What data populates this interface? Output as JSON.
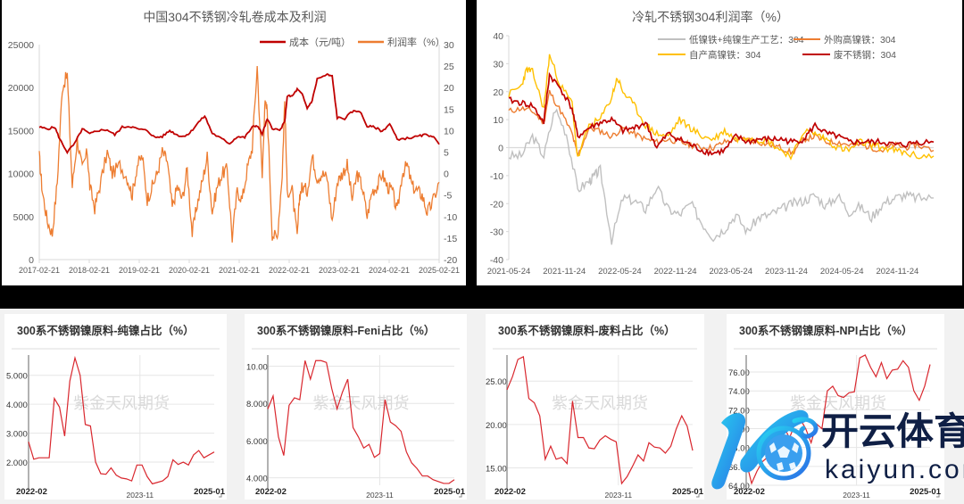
{
  "chart_data": [
    {
      "id": "cost_profit_304",
      "type": "line",
      "title": "中国304不锈钢冷轧卷成本及利润",
      "xlabel": "",
      "ylabel": "",
      "x_ticks": [
        "2017-02-21",
        "2018-02-21",
        "2019-02-21",
        "2020-02-21",
        "2021-02-21",
        "2022-02-21",
        "2023-02-21",
        "2024-02-21",
        "2025-02-21"
      ],
      "y_left": {
        "ticks": [
          0,
          5000,
          10000,
          15000,
          20000,
          25000
        ],
        "ylim": [
          0,
          25000
        ]
      },
      "y_right": {
        "ticks": [
          -20,
          -15,
          -10,
          -5,
          0,
          5,
          10,
          15,
          20,
          25,
          30
        ],
        "ylim": [
          -20,
          30
        ]
      },
      "legend_position": "top-right",
      "grid": false,
      "series": [
        {
          "name": "成本（元/吨）",
          "axis": "left",
          "color": "#c00000",
          "x": [
            2017.14,
            2017.3,
            2017.45,
            2017.55,
            2017.7,
            2017.85,
            2018.0,
            2018.15,
            2018.3,
            2018.5,
            2018.65,
            2018.8,
            2018.95,
            2019.1,
            2019.3,
            2019.45,
            2019.6,
            2019.75,
            2019.9,
            2020.0,
            2020.15,
            2020.3,
            2020.45,
            2020.6,
            2020.8,
            2020.95,
            2021.1,
            2021.25,
            2021.4,
            2021.5,
            2021.6,
            2021.7,
            2021.8,
            2021.95,
            2022.05,
            2022.1,
            2022.2,
            2022.3,
            2022.4,
            2022.5,
            2022.6,
            2022.7,
            2022.9,
            2023.0,
            2023.1,
            2023.25,
            2023.4,
            2023.55,
            2023.7,
            2023.85,
            2024.0,
            2024.15,
            2024.3,
            2024.5,
            2024.7,
            2024.85,
            2025.0,
            2025.14
          ],
          "values": [
            15400,
            15200,
            15400,
            14000,
            12500,
            13500,
            15200,
            14600,
            15000,
            15100,
            14500,
            15400,
            15500,
            15200,
            15000,
            14200,
            14300,
            15000,
            14500,
            14300,
            14700,
            15800,
            16700,
            14700,
            14000,
            13500,
            14300,
            14200,
            15400,
            15600,
            14600,
            16300,
            15300,
            15000,
            16000,
            19000,
            19000,
            19800,
            19200,
            17600,
            18500,
            21000,
            21500,
            21300,
            16500,
            16400,
            17200,
            17300,
            15500,
            15400,
            14900,
            15800,
            14000,
            14100,
            14300,
            14500,
            14400,
            13400
          ]
        },
        {
          "name": "利润率（%）",
          "axis": "right",
          "color": "#ed7d31",
          "x": [
            2017.14,
            2017.2,
            2017.3,
            2017.4,
            2017.5,
            2017.6,
            2017.7,
            2017.8,
            2017.9,
            2018.0,
            2018.1,
            2018.15,
            2018.25,
            2018.35,
            2018.5,
            2018.6,
            2018.75,
            2018.9,
            2019.0,
            2019.1,
            2019.2,
            2019.3,
            2019.4,
            2019.5,
            2019.6,
            2019.7,
            2019.8,
            2019.9,
            2020.0,
            2020.1,
            2020.2,
            2020.3,
            2020.4,
            2020.5,
            2020.6,
            2020.7,
            2020.8,
            2020.9,
            2021.0,
            2021.1,
            2021.2,
            2021.3,
            2021.4,
            2021.5,
            2021.6,
            2021.65,
            2021.7,
            2021.8,
            2021.9,
            2022.0,
            2022.05,
            2022.1,
            2022.2,
            2022.3,
            2022.35,
            2022.4,
            2022.5,
            2022.6,
            2022.7,
            2022.8,
            2022.9,
            2023.0,
            2023.1,
            2023.2,
            2023.3,
            2023.4,
            2023.5,
            2023.6,
            2023.7,
            2023.8,
            2023.9,
            2024.0,
            2024.1,
            2024.2,
            2024.3,
            2024.4,
            2024.5,
            2024.6,
            2024.7,
            2024.8,
            2024.9,
            2025.0,
            2025.14
          ],
          "values": [
            4,
            -4,
            -11,
            -14,
            -2,
            20,
            23,
            -3,
            8,
            1,
            5,
            -3,
            -8,
            -3,
            5,
            0,
            2,
            -1,
            -5,
            2,
            4,
            -6,
            -3,
            0,
            5,
            3,
            -8,
            -3,
            -6,
            1,
            -14,
            -7,
            -2,
            4,
            -9,
            -3,
            0,
            1,
            -15,
            -4,
            -6,
            1,
            6,
            25,
            -1,
            16,
            15,
            -14,
            -15,
            0,
            17,
            -4,
            -4,
            -15,
            -5,
            -3,
            -4,
            4,
            -1,
            0,
            -1,
            -11,
            -2,
            0,
            2,
            -6,
            0,
            -3,
            -10,
            -4,
            -3,
            0,
            -3,
            -4,
            -9,
            0,
            2,
            -3,
            -4,
            -5,
            -9,
            -7,
            -2
          ]
        }
      ]
    },
    {
      "id": "cold_rolled_304_profit_rate",
      "type": "line",
      "title": "冷轧不锈钢304利润率（%）",
      "xlabel": "",
      "ylabel": "",
      "x_ticks": [
        "2021-05-24",
        "2021-11-24",
        "2022-05-24",
        "2022-11-24",
        "2023-05-24",
        "2023-11-24",
        "2024-05-24",
        "2024-11-24"
      ],
      "y_ticks": [
        -40,
        -30,
        -20,
        -10,
        0,
        10,
        20,
        30,
        40
      ],
      "ylim": [
        -40,
        40
      ],
      "legend_position": "top",
      "grid": false,
      "series": [
        {
          "name": "低镍铁+纯镍生产工艺：304",
          "color": "#c0c0c0",
          "x": [
            2021.39,
            2021.5,
            2021.6,
            2021.7,
            2021.8,
            2021.9,
            2022.0,
            2022.1,
            2022.15,
            2022.2,
            2022.3,
            2022.4,
            2022.5,
            2022.6,
            2022.7,
            2022.8,
            2022.9,
            2023.0,
            2023.1,
            2023.2,
            2023.3,
            2023.4,
            2023.5,
            2023.6,
            2023.7,
            2023.8,
            2023.9,
            2024.0,
            2024.1,
            2024.2,
            2024.3,
            2024.4,
            2024.5,
            2024.6,
            2024.7,
            2024.8,
            2024.9,
            2025.0,
            2025.15
          ],
          "values": [
            -3,
            -3,
            4,
            -3,
            14,
            5,
            -15,
            -12,
            -10,
            -8,
            -33,
            -18,
            -19,
            -22,
            -14,
            -22,
            -24,
            -20,
            -27,
            -32,
            -29,
            -24,
            -30,
            -25,
            -24,
            -22,
            -20,
            -19,
            -17,
            -21,
            -17,
            -23,
            -21,
            -25,
            -20,
            -18,
            -17,
            -18,
            -18
          ]
        },
        {
          "name": "外购高镍铁：304",
          "color": "#ed7d31",
          "x": [
            2021.39,
            2021.5,
            2021.6,
            2021.7,
            2021.75,
            2021.85,
            2021.95,
            2022.0,
            2022.1,
            2022.2,
            2022.3,
            2022.4,
            2022.5,
            2022.6,
            2022.7,
            2022.8,
            2022.9,
            2023.0,
            2023.1,
            2023.2,
            2023.3,
            2023.4,
            2023.5,
            2023.6,
            2023.7,
            2023.8,
            2023.9,
            2024.0,
            2024.1,
            2024.2,
            2024.3,
            2024.4,
            2024.5,
            2024.6,
            2024.7,
            2024.8,
            2024.9,
            2025.0,
            2025.15
          ],
          "values": [
            13,
            14,
            13,
            9,
            20,
            13,
            5,
            -3,
            7,
            6,
            4,
            7,
            5,
            3,
            2,
            3,
            2,
            1,
            0,
            0,
            2,
            3,
            3,
            2,
            1,
            0,
            -2,
            3,
            4,
            2,
            2,
            1,
            1,
            0,
            -1,
            1,
            0,
            1,
            -1
          ]
        },
        {
          "name": "自产高镍铁：304",
          "color": "#ffc000",
          "x": [
            2021.39,
            2021.5,
            2021.55,
            2021.6,
            2021.7,
            2021.75,
            2021.85,
            2021.95,
            2022.0,
            2022.1,
            2022.2,
            2022.3,
            2022.35,
            2022.4,
            2022.5,
            2022.6,
            2022.7,
            2022.8,
            2022.9,
            2023.0,
            2023.1,
            2023.2,
            2023.3,
            2023.4,
            2023.5,
            2023.6,
            2023.7,
            2023.8,
            2023.9,
            2024.0,
            2024.1,
            2024.2,
            2024.3,
            2024.4,
            2024.5,
            2024.6,
            2024.7,
            2024.8,
            2024.9,
            2025.0,
            2025.15
          ],
          "values": [
            19,
            22,
            28,
            27,
            14,
            33,
            22,
            16,
            -4,
            8,
            10,
            18,
            25,
            20,
            15,
            8,
            5,
            4,
            10,
            7,
            4,
            3,
            6,
            3,
            4,
            3,
            2,
            -1,
            -3,
            6,
            5,
            3,
            0,
            -1,
            2,
            1,
            0,
            -1,
            -2,
            -3,
            -3
          ]
        },
        {
          "name": "废不锈钢：304",
          "color": "#c00000",
          "x": [
            2021.39,
            2021.5,
            2021.6,
            2021.7,
            2021.75,
            2021.85,
            2021.95,
            2022.0,
            2022.1,
            2022.2,
            2022.3,
            2022.4,
            2022.5,
            2022.6,
            2022.7,
            2022.8,
            2022.9,
            2023.0,
            2023.1,
            2023.2,
            2023.3,
            2023.4,
            2023.5,
            2023.6,
            2023.7,
            2023.8,
            2023.9,
            2024.0,
            2024.1,
            2024.2,
            2024.3,
            2024.4,
            2024.5,
            2024.6,
            2024.7,
            2024.8,
            2024.9,
            2025.0,
            2025.15
          ],
          "values": [
            17,
            16,
            15,
            9,
            26,
            21,
            14,
            4,
            7,
            9,
            10,
            6,
            7,
            9,
            0,
            5,
            3,
            1,
            -1,
            -2,
            -1,
            4,
            2,
            3,
            3,
            3,
            2,
            3,
            8,
            5,
            4,
            2,
            2,
            2,
            2,
            1,
            1,
            2,
            2
          ]
        }
      ]
    },
    {
      "id": "pure_nickel_share",
      "type": "line",
      "title": "300系不锈钢镍原料-纯镍占比（%）",
      "x_ticks": [
        "2022-02",
        "2023-11",
        "2025-01"
      ],
      "y_ticks": [
        "2.000",
        "3.000",
        "4.000",
        "5.000"
      ],
      "ylim": [
        1.2,
        5.7
      ],
      "color": "#d9272e",
      "values": [
        2.7,
        2.1,
        2.15,
        2.15,
        2.15,
        4.2,
        3.9,
        2.9,
        4.8,
        5.6,
        5.0,
        3.3,
        3.25,
        2.0,
        1.6,
        1.58,
        1.8,
        1.55,
        1.45,
        1.42,
        1.35,
        1.9,
        1.9,
        1.5,
        1.25,
        1.3,
        1.35,
        1.5,
        2.08,
        1.92,
        2.0,
        1.9,
        2.25,
        2.4,
        2.15,
        2.25,
        2.35
      ]
    },
    {
      "id": "feni_share",
      "type": "line",
      "title": "300系不锈钢镍原料-Feni占比（%）",
      "x_ticks": [
        "2022-02",
        "2023-11",
        "2025-01"
      ],
      "y_ticks": [
        "4.000",
        "6.000",
        "8.000",
        "10.00"
      ],
      "ylim": [
        3.6,
        10.6
      ],
      "color": "#d9272e",
      "values": [
        7.7,
        8.4,
        6.2,
        5.2,
        7.9,
        8.3,
        8.2,
        10.3,
        9.3,
        10.3,
        10.3,
        10.2,
        8.8,
        7.7,
        8.6,
        9.3,
        6.7,
        6.2,
        5.6,
        5.8,
        5.1,
        5.3,
        8.2,
        7.0,
        6.8,
        6.5,
        5.4,
        4.8,
        4.5,
        4.1,
        4.1,
        3.9,
        3.8,
        3.7,
        3.7,
        3.9
      ]
    },
    {
      "id": "scrap_share",
      "type": "line",
      "title": "300系不锈钢镍原料-废料占比（%）",
      "x_ticks": [
        "2022-02",
        "2023-11",
        "2025-01"
      ],
      "y_ticks": [
        "15.00",
        "20.00",
        "25.00"
      ],
      "ylim": [
        13,
        28
      ],
      "color": "#d9272e",
      "values": [
        24.0,
        25.5,
        27.5,
        27.8,
        23.0,
        22.5,
        21.0,
        16.0,
        17.5,
        16.0,
        16.2,
        15.5,
        22.7,
        18.5,
        18.5,
        17.3,
        17.2,
        18.2,
        18.7,
        18.3,
        18.0,
        13.2,
        14.0,
        15.2,
        16.5,
        15.8,
        17.9,
        17.4,
        17.3,
        16.7,
        17.5,
        19.5,
        21.0,
        19.8,
        17.0
      ]
    },
    {
      "id": "npi_share",
      "type": "line",
      "title": "300系不锈钢镍原料-NPI占比（%）",
      "x_ticks": [
        "2022-02",
        "2023-11",
        "2025-01"
      ],
      "y_ticks": [
        "64.00",
        "66.00",
        "68.00",
        "70.00",
        "72.00",
        "74.00",
        "76.00"
      ],
      "ylim": [
        64,
        77.8
      ],
      "color": "#d9272e",
      "values": [
        66.5,
        64.2,
        65.5,
        66.5,
        67.0,
        68.5,
        69.5,
        70.2,
        69.0,
        70.5,
        71.0,
        70.0,
        68.5,
        70.5,
        70.0,
        74.0,
        74.5,
        73.5,
        73.3,
        73.8,
        73.9,
        77.5,
        77.8,
        76.5,
        75.5,
        77.0,
        75.3,
        76.2,
        76.3,
        77.2,
        76.5,
        74.0,
        73.0,
        74.5,
        76.8
      ]
    }
  ],
  "panels": {
    "p1": {
      "title": "中国304不锈钢冷轧卷成本及利润",
      "legend": [
        "成本（元/吨）",
        "利润率（%）"
      ],
      "y_left_labels": [
        "25000",
        "20000",
        "15000",
        "10000",
        "5000",
        "0"
      ],
      "y_right_labels": [
        "30",
        "25",
        "20",
        "15",
        "10",
        "5",
        "0",
        "-5",
        "-10",
        "-15",
        "-20"
      ],
      "x_labels": [
        "2017-02-21",
        "2018-02-21",
        "2019-02-21",
        "2020-02-21",
        "2021-02-21",
        "2022-02-21",
        "2023-02-21",
        "2024-02-21",
        "2025-02-21"
      ]
    },
    "p2": {
      "title": "冷轧不锈钢304利润率（%）",
      "legend": [
        "低镍铁+纯镍生产工艺：304",
        "外购高镍铁：304",
        "自产高镍铁：304",
        "废不锈钢：304"
      ],
      "y_labels": [
        "40",
        "30",
        "20",
        "10",
        "0",
        "-10",
        "-20",
        "-30",
        "-40"
      ],
      "x_labels": [
        "2021-05-24",
        "2021-11-24",
        "2022-05-24",
        "2022-11-24",
        "2023-05-24",
        "2023-11-24",
        "2024-05-24",
        "2024-11-24"
      ]
    },
    "cards": [
      {
        "title": "300系不锈钢镍原料-纯镍占比（%）",
        "watermark": "紫金天风期货",
        "x_start": "2022-02",
        "x_mid": "2023-11",
        "x_end": "2025-01"
      },
      {
        "title": "300系不锈钢镍原料-Feni占比（%）",
        "watermark": "紫金天风期货",
        "x_start": "2022-02",
        "x_mid": "2023-11",
        "x_end": "2025-01"
      },
      {
        "title": "300系不锈钢镍原料-废料占比（%）",
        "watermark": "紫金天风期货",
        "x_start": "2022-02",
        "x_mid": "2023-11",
        "x_end": "2025-01"
      },
      {
        "title": "300系不锈钢镍原料-NPI占比（%）",
        "watermark": "紫金天风期货",
        "x_start": "2022-02",
        "x_mid": "2023-11",
        "x_end": "2025-01"
      }
    ]
  },
  "overlay": {
    "brand_cn": "开云体育",
    "brand_url": "kaiyun.com"
  },
  "colors": {
    "cost_red": "#c00000",
    "profit_orange": "#ed7d31",
    "gray_series": "#c0c0c0",
    "yellow_series": "#ffc000",
    "card_line": "#d9272e",
    "brand_blue": "#1e90e8",
    "brand_navy": "#0f1f45"
  }
}
